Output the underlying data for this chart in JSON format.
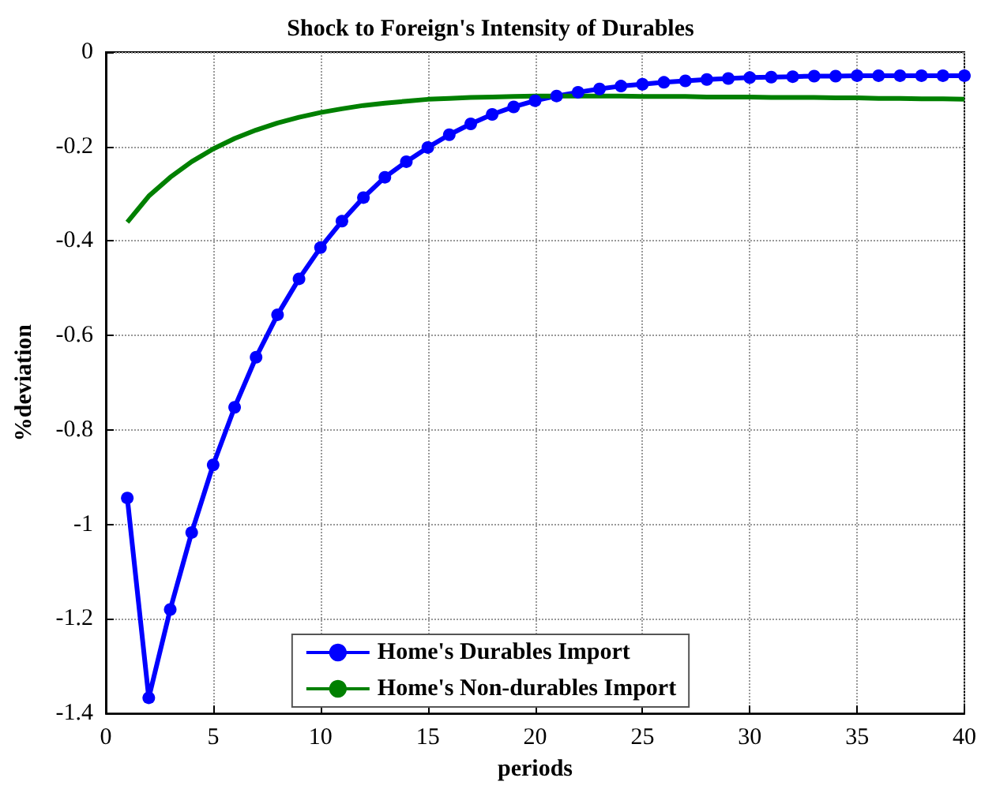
{
  "chart_data": {
    "type": "line",
    "title": "Shock to Foreign's Intensity of Durables",
    "xlabel": "periods",
    "ylabel": "%deviation",
    "x": [
      1,
      2,
      3,
      4,
      5,
      6,
      7,
      8,
      9,
      10,
      11,
      12,
      13,
      14,
      15,
      16,
      17,
      18,
      19,
      20,
      21,
      22,
      23,
      24,
      25,
      26,
      27,
      28,
      29,
      30,
      31,
      32,
      33,
      34,
      35,
      36,
      37,
      38,
      39,
      40
    ],
    "series": [
      {
        "name": "Home's Durables Import",
        "color": "#0000ff",
        "marker": "circle",
        "values": [
          -0.944,
          -1.367,
          -1.18,
          -1.017,
          -0.874,
          -0.752,
          -0.646,
          -0.556,
          -0.48,
          -0.414,
          -0.358,
          -0.308,
          -0.265,
          -0.232,
          -0.202,
          -0.175,
          -0.152,
          -0.132,
          -0.116,
          -0.103,
          -0.093,
          -0.085,
          -0.078,
          -0.072,
          -0.068,
          -0.064,
          -0.061,
          -0.058,
          -0.056,
          -0.054,
          -0.053,
          -0.052,
          -0.051,
          -0.051,
          -0.05,
          -0.05,
          -0.05,
          -0.05,
          -0.05,
          -0.05
        ]
      },
      {
        "name": "Home's Non-durables Import",
        "color": "#008000",
        "marker": "none",
        "values": [
          -0.36,
          -0.305,
          -0.265,
          -0.232,
          -0.205,
          -0.183,
          -0.165,
          -0.15,
          -0.138,
          -0.128,
          -0.12,
          -0.113,
          -0.108,
          -0.104,
          -0.1,
          -0.098,
          -0.096,
          -0.095,
          -0.094,
          -0.093,
          -0.093,
          -0.093,
          -0.093,
          -0.093,
          -0.094,
          -0.094,
          -0.094,
          -0.095,
          -0.095,
          -0.095,
          -0.096,
          -0.096,
          -0.096,
          -0.097,
          -0.097,
          -0.098,
          -0.098,
          -0.099,
          -0.099,
          -0.1
        ]
      }
    ],
    "xlim": [
      0,
      40
    ],
    "xticks": [
      0,
      5,
      10,
      15,
      20,
      25,
      30,
      35,
      40
    ],
    "ylim": [
      -1.4,
      0
    ],
    "yticks": [
      -1.4,
      -1.2,
      -1,
      -0.8,
      -0.6,
      -0.4,
      -0.2,
      0
    ],
    "grid": true,
    "legend": "bottom",
    "line_style": "solid"
  }
}
